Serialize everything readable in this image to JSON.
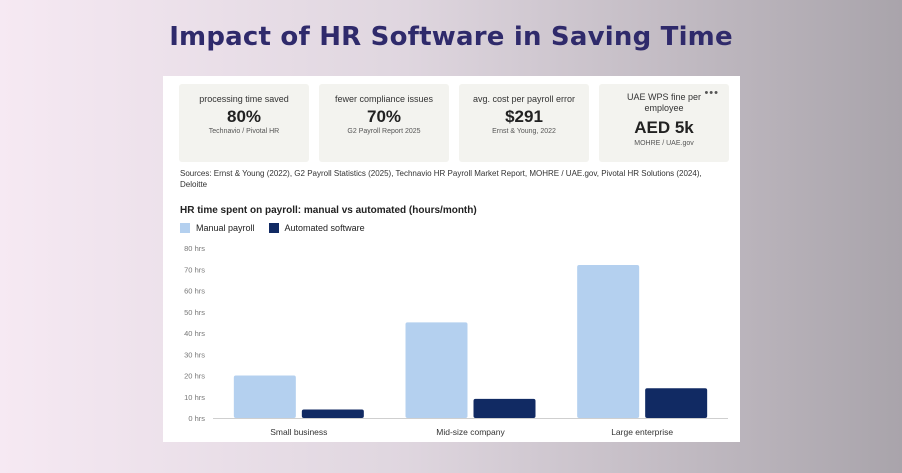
{
  "page_title": "Impact of HR Software in Saving Time",
  "stats": [
    {
      "label": "processing time saved",
      "value": "80%",
      "source": "Technavio / Pivotal HR"
    },
    {
      "label": "fewer compliance issues",
      "value": "70%",
      "source": "G2 Payroll Report 2025"
    },
    {
      "label": "avg. cost per payroll error",
      "value": "$291",
      "source": "Ernst & Young, 2022"
    },
    {
      "label": "UAE WPS fine per employee",
      "value": "AED 5k",
      "source": "MOHRE / UAE.gov",
      "menu_icon": "more-horizontal-icon"
    }
  ],
  "sources_note": "Sources: Ernst & Young (2022), G2 Payroll Statistics (2025), Technavio HR Payroll Market Report, MOHRE / UAE.gov, Pivotal HR Solutions (2024), Deloitte",
  "colors": {
    "manual": "#b4d0ef",
    "automated": "#112a63",
    "grid": "#e6e6e6"
  },
  "chart_data": {
    "type": "bar",
    "title": "HR time spent on payroll: manual vs automated (hours/month)",
    "categories": [
      "Small business",
      "Mid-size company",
      "Large enterprise"
    ],
    "series": [
      {
        "name": "Manual payroll",
        "values": [
          20,
          45,
          72
        ]
      },
      {
        "name": "Automated software",
        "values": [
          4,
          9,
          14
        ]
      }
    ],
    "ylim": [
      0,
      80
    ],
    "yticks": [
      0,
      10,
      20,
      30,
      40,
      50,
      60,
      70,
      80
    ],
    "ytick_labels": [
      "0 hrs",
      "10 hrs",
      "20 hrs",
      "30 hrs",
      "40 hrs",
      "50 hrs",
      "60 hrs",
      "70 hrs",
      "80 hrs"
    ],
    "legend": "top-left",
    "grid": false
  }
}
